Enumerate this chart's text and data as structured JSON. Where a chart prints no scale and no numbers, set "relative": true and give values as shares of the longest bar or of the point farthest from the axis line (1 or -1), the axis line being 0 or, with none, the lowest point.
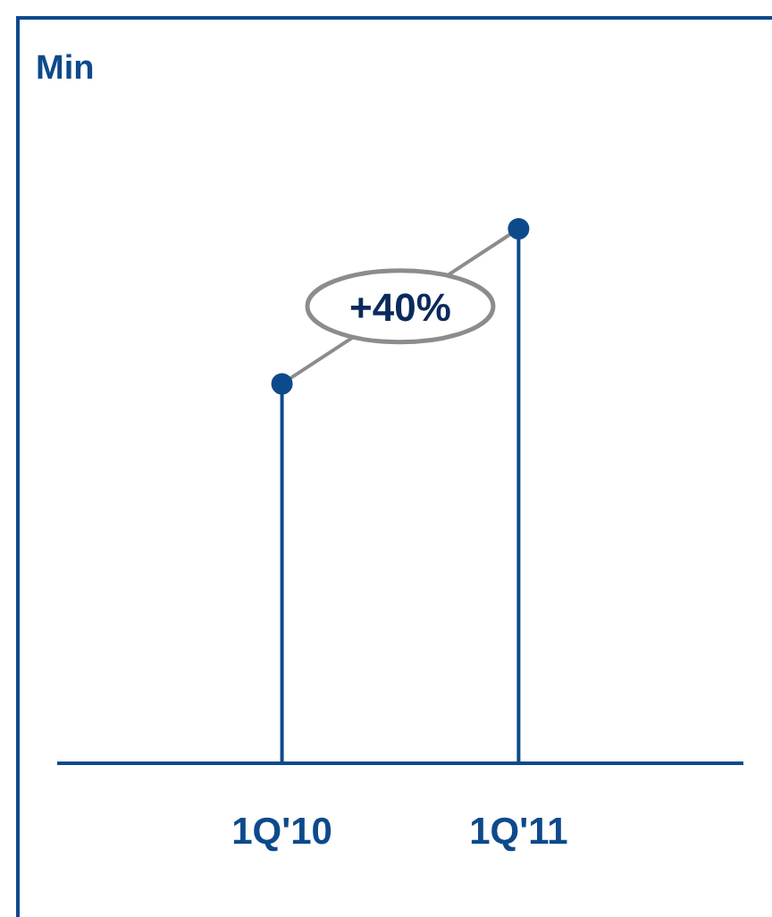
{
  "chart_data": {
    "type": "lollipop",
    "ylabel": "Min",
    "relative": true,
    "categories": [
      "1Q'10",
      "1Q'11"
    ],
    "series": [
      {
        "type": "line",
        "color": "#8c8c8c",
        "values": [
          0.71,
          1
        ]
      },
      {
        "color": "#0d4a8c",
        "values": [
          0.71,
          1
        ]
      }
    ],
    "annotations": [
      "+40%"
    ]
  }
}
